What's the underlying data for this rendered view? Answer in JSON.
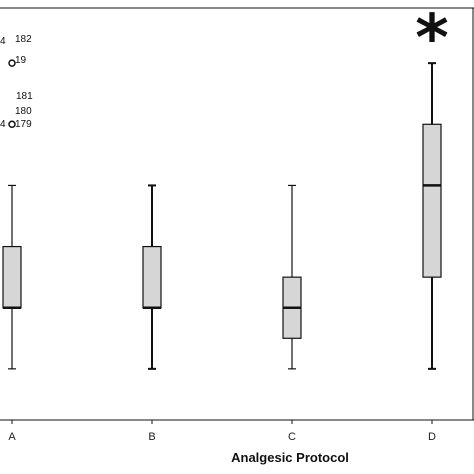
{
  "chart_data": {
    "type": "box",
    "title": "",
    "xlabel": "Analgesic Protocol",
    "ylabel": "",
    "ylim": [
      0,
      7
    ],
    "categories": [
      "A",
      "B",
      "C",
      "D"
    ],
    "boxes": [
      {
        "category": "A",
        "whisker_low": 1,
        "q1": 2,
        "median": 2,
        "q3": 3,
        "whisker_high": 4,
        "whisker_style": "thin"
      },
      {
        "category": "B",
        "whisker_low": 1,
        "q1": 2,
        "median": 2,
        "q3": 3,
        "whisker_high": 4,
        "whisker_style": "thick"
      },
      {
        "category": "C",
        "whisker_low": 1,
        "q1": 1.5,
        "median": 2,
        "q3": 2.5,
        "whisker_high": 4,
        "whisker_style": "thin"
      },
      {
        "category": "D",
        "whisker_low": 1,
        "q1": 2.5,
        "median": 4,
        "q3": 5,
        "whisker_high": 6,
        "whisker_style": "thick"
      }
    ],
    "outliers": [
      {
        "category": "A",
        "value": 6,
        "labels": [
          "4",
          "182",
          "19"
        ]
      },
      {
        "category": "A",
        "value": 5,
        "labels": [
          "181",
          "4",
          "180",
          "179"
        ]
      }
    ],
    "significance_marker": {
      "category": "D",
      "symbol": "*"
    },
    "colors": {
      "box_fill": "#d6d6d6",
      "line": "#111111"
    }
  }
}
